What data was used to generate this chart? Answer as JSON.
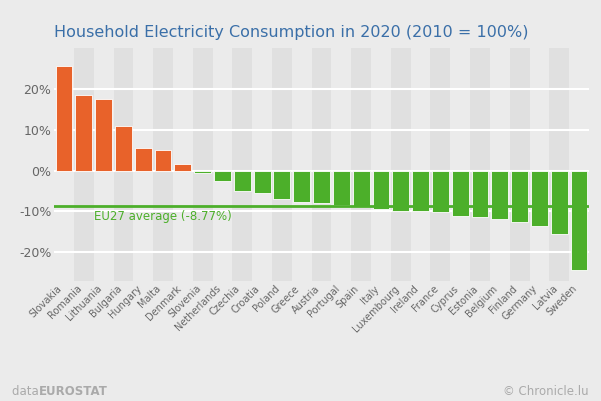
{
  "title": "Household Electricity Consumption in 2020 (2010 = 100%)",
  "categories": [
    "Slovakia",
    "Romania",
    "Lithuania",
    "Bulgaria",
    "Hungary",
    "Malta",
    "Denmark",
    "Slovenia",
    "Netherlands",
    "Czechia",
    "Croatia",
    "Poland",
    "Greece",
    "Austria",
    "Portugal",
    "Spain",
    "Italy",
    "Luxembourg",
    "Ireland",
    "France",
    "Cyprus",
    "Estonia",
    "Belgium",
    "Finland",
    "Germany",
    "Latvia",
    "Sweden"
  ],
  "values": [
    25.5,
    18.5,
    17.5,
    11.0,
    5.5,
    5.0,
    1.5,
    -0.5,
    -2.5,
    -5.0,
    -5.5,
    -7.0,
    -7.8,
    -8.0,
    -8.5,
    -9.0,
    -9.5,
    -9.8,
    -10.0,
    -10.2,
    -11.2,
    -11.5,
    -11.8,
    -12.5,
    -13.5,
    -15.5,
    -24.5
  ],
  "eu27_avg": -8.77,
  "orange_color": "#E8622A",
  "green_color": "#4CAF2A",
  "avg_line_color": "#4CAF2A",
  "background_color": "#EBEBEB",
  "plot_bg_color": "#E0E0E0",
  "stripe_color": "#EBEBEB",
  "title_color": "#3A6FA8",
  "footer_data": "data: ",
  "footer_eurostat": "EUROSTAT",
  "footer_right": "© Chronicle.lu",
  "footer_color": "#AAAAAA",
  "ylim": [
    -27,
    30
  ],
  "yticks": [
    -20,
    -10,
    0,
    10,
    20
  ],
  "grid_color": "#FFFFFF",
  "bar_edge_color": "white"
}
